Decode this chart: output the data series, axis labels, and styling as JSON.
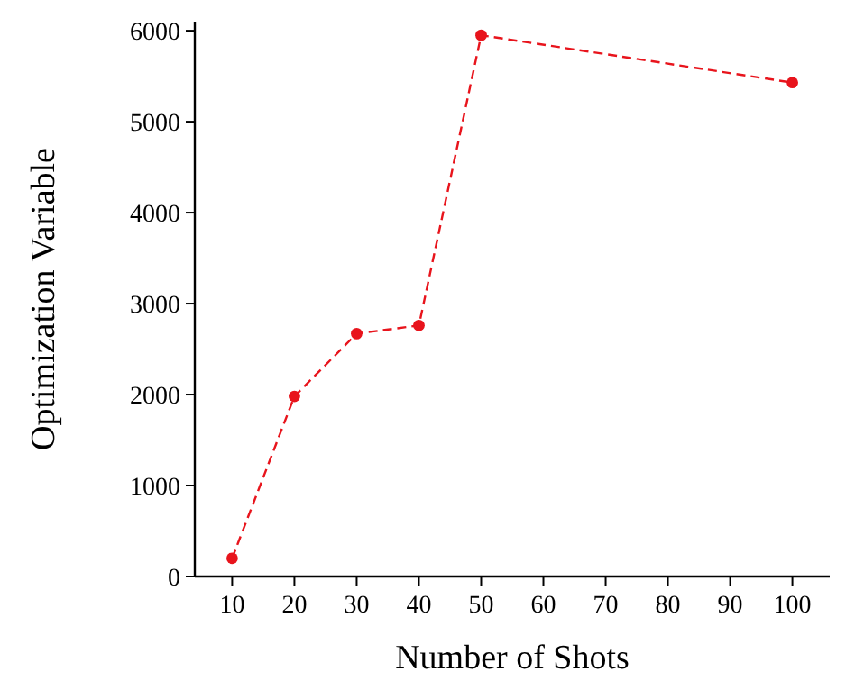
{
  "chart_data": {
    "type": "line",
    "xlabel": "Number of Shots",
    "ylabel": "Optimization Variable",
    "x": [
      10,
      20,
      30,
      40,
      50,
      100
    ],
    "series": [
      {
        "color": "#e8141c",
        "values": [
          200,
          1980,
          2670,
          2760,
          5950,
          5430
        ]
      }
    ],
    "xlim": [
      4,
      106
    ],
    "xticks": [
      10,
      20,
      30,
      40,
      50,
      60,
      70,
      80,
      90,
      100
    ],
    "ylim": [
      0,
      6100
    ],
    "yticks": [
      0,
      1000,
      2000,
      3000,
      4000,
      5000,
      6000
    ],
    "marker": "circle",
    "line_style": "dashed"
  }
}
